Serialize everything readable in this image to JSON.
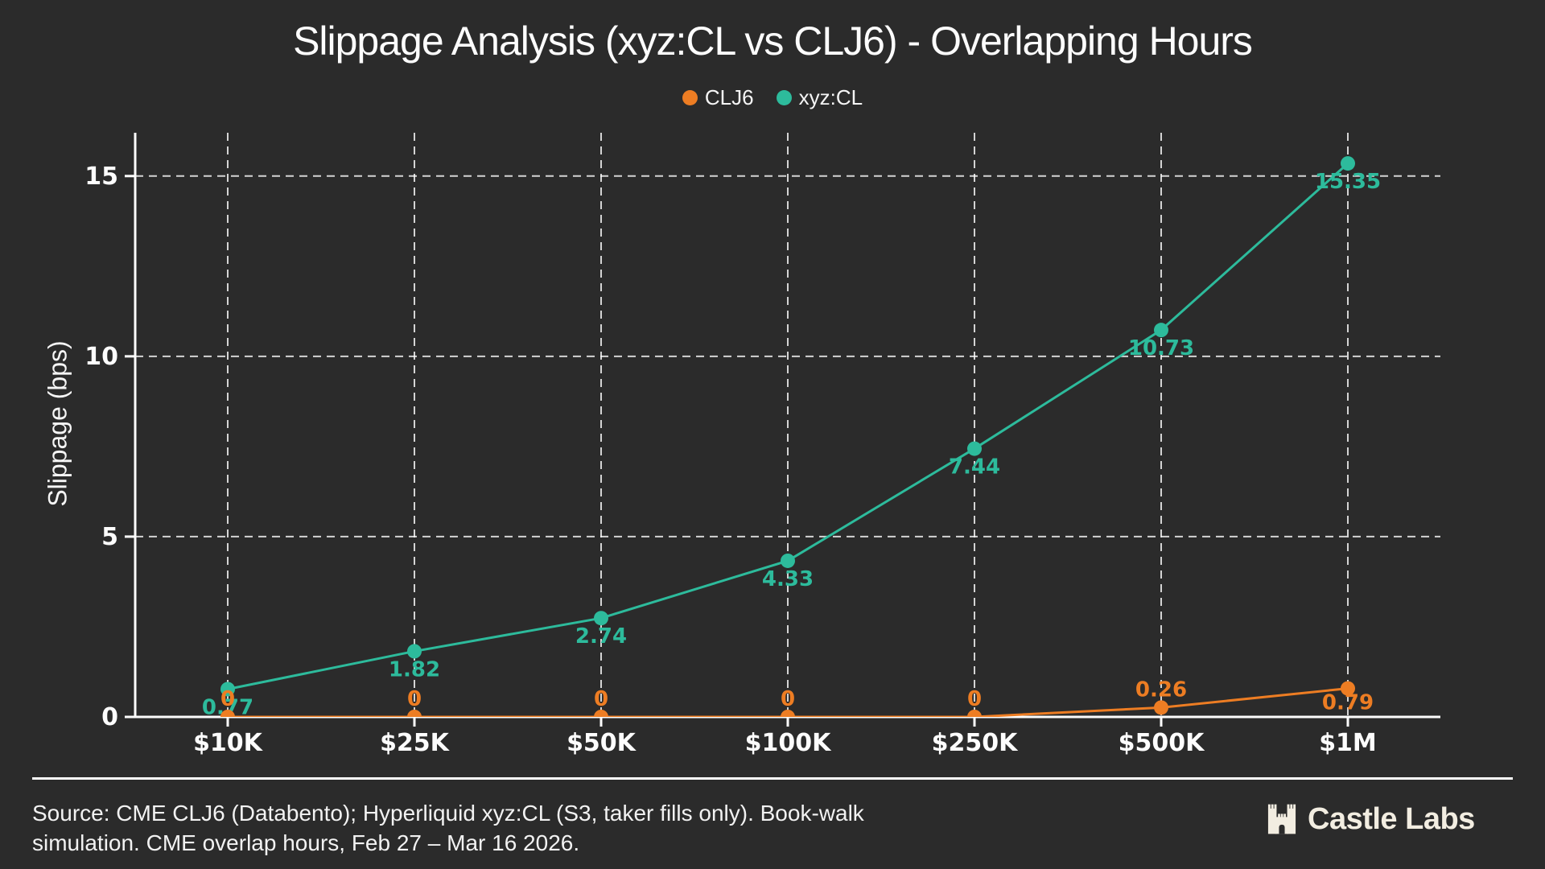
{
  "title": "Slippage Analysis (xyz:CL vs CLJ6) - Overlapping Hours",
  "legend": [
    {
      "label": "CLJ6",
      "color": "#ed7d23"
    },
    {
      "label": "xyz:CL",
      "color": "#2dbb9c"
    }
  ],
  "chart_data": {
    "type": "line",
    "categories": [
      "$10K",
      "$25K",
      "$50K",
      "$100K",
      "$250K",
      "$500K",
      "$1M"
    ],
    "series": [
      {
        "name": "CLJ6",
        "color": "#ed7d23",
        "values": [
          0,
          0,
          0,
          0,
          0,
          0.26,
          0.79
        ],
        "labels": [
          "0",
          "0",
          "0",
          "0",
          "0",
          "0.26",
          "0.79"
        ]
      },
      {
        "name": "xyz:CL",
        "color": "#2dbb9c",
        "values": [
          0.77,
          1.82,
          2.74,
          4.33,
          7.44,
          10.73,
          15.35
        ],
        "labels": [
          "0.77",
          "1.82",
          "2.74",
          "4.33",
          "7.44",
          "10.73",
          "15.35"
        ]
      }
    ],
    "xlabel": "",
    "ylabel": "Slippage (bps)",
    "yticks": [
      0,
      5,
      10,
      15
    ],
    "ylim": [
      0,
      16.2
    ],
    "grid": "dashed",
    "legend_position": "top-center"
  },
  "footer": {
    "source_line1": "Source: CME CLJ6 (Databento); Hyperliquid xyz:CL (S3, taker fills only). Book-walk",
    "source_line2": "simulation. CME overlap hours, Feb 27 – Mar 16 2026.",
    "logo_text": "Castle Labs"
  },
  "colors": {
    "background": "#2b2b2b",
    "text": "#f5f5f5",
    "axis": "#fdfdfd",
    "grid": "#ffffff",
    "clj6_orange": "#ed7d23",
    "xyzcl_teal": "#2dbb9c",
    "logo_cream": "#f2ede1"
  }
}
